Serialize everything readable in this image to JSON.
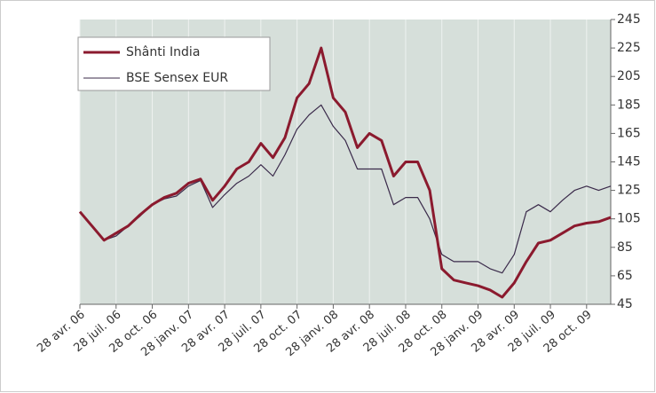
{
  "chart_data": {
    "type": "line",
    "categories": [
      "28 avr. 06",
      null,
      null,
      "28 juil. 06",
      null,
      null,
      "28 oct. 06",
      null,
      null,
      "28 janv. 07",
      null,
      null,
      "28 avr. 07",
      null,
      null,
      "28 juil. 07",
      null,
      null,
      "28 oct. 07",
      null,
      null,
      "28 janv. 08",
      null,
      null,
      "28 avr. 08",
      null,
      null,
      "28 juil. 08",
      null,
      null,
      "28 oct. 08",
      null,
      null,
      "28 janv. 09",
      null,
      null,
      "28 avr. 09",
      null,
      null,
      "28 juil. 09",
      null,
      null,
      "28 oct. 09",
      null,
      null
    ],
    "series": [
      {
        "name": "Shânti India",
        "color": "#8b1a2e",
        "values": [
          110,
          100,
          90,
          95,
          100,
          108,
          115,
          120,
          123,
          130,
          133,
          118,
          128,
          140,
          145,
          158,
          148,
          162,
          190,
          200,
          225,
          190,
          180,
          155,
          165,
          160,
          135,
          145,
          145,
          125,
          70,
          62,
          60,
          58,
          55,
          50,
          60,
          75,
          88,
          90,
          95,
          100,
          102,
          103,
          106
        ]
      },
      {
        "name": "BSE Sensex EUR",
        "color": "#3a2a4a",
        "values": [
          110,
          100,
          90,
          93,
          100,
          107,
          115,
          119,
          121,
          128,
          132,
          113,
          122,
          130,
          135,
          143,
          135,
          150,
          168,
          178,
          185,
          170,
          160,
          140,
          140,
          140,
          115,
          120,
          120,
          105,
          80,
          75,
          75,
          75,
          70,
          67,
          80,
          110,
          115,
          110,
          118,
          125,
          128,
          125,
          128
        ]
      }
    ],
    "ylim": [
      45,
      245
    ],
    "yticks": [
      45,
      65,
      85,
      105,
      125,
      145,
      165,
      185,
      205,
      225,
      245
    ],
    "grid": true,
    "legend": "upper left"
  }
}
